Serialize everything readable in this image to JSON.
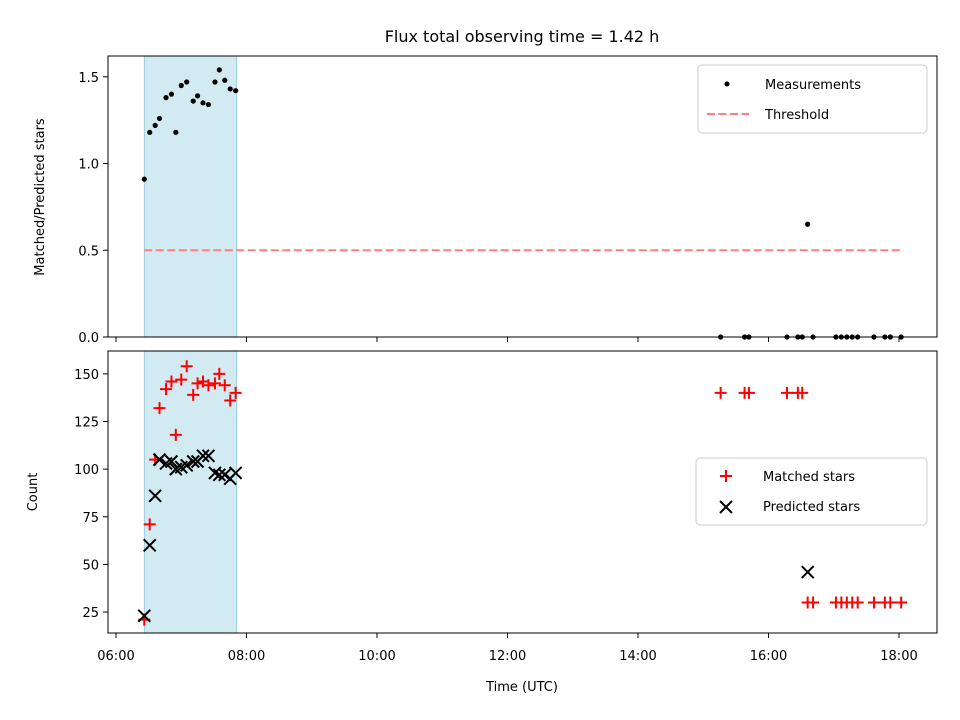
{
  "colors": {
    "measurement": "#000000",
    "threshold": "#ff7f7f",
    "matched": "#ff0000",
    "predicted": "#000000",
    "highlight": "#add8e6"
  },
  "chart_data": [
    {
      "type": "scatter",
      "title": "Flux total observing time = 1.42 h",
      "xlabel": "",
      "ylabel": "Matched/Predicted stars",
      "xlim": [
        "06:00",
        "18:00"
      ],
      "ylim": [
        0,
        1.62
      ],
      "yticks": [
        "0.0",
        "0.5",
        "1.0",
        "1.5"
      ],
      "highlight_span": {
        "x_start": "06:26",
        "x_end": "07:51"
      },
      "legend_position": "top-right",
      "threshold": {
        "name": "Threshold",
        "y": 0.5,
        "x_start": "06:26",
        "x_end": "18:02"
      },
      "series": [
        {
          "name": "Measurements",
          "points": [
            [
              "06:26",
              0.91
            ],
            [
              "06:31",
              1.18
            ],
            [
              "06:36",
              1.22
            ],
            [
              "06:40",
              1.26
            ],
            [
              "06:46",
              1.38
            ],
            [
              "06:51",
              1.4
            ],
            [
              "06:55",
              1.18
            ],
            [
              "07:00",
              1.45
            ],
            [
              "07:05",
              1.47
            ],
            [
              "07:11",
              1.36
            ],
            [
              "07:15",
              1.39
            ],
            [
              "07:20",
              1.35
            ],
            [
              "07:25",
              1.34
            ],
            [
              "07:31",
              1.47
            ],
            [
              "07:35",
              1.54
            ],
            [
              "07:40",
              1.48
            ],
            [
              "07:45",
              1.43
            ],
            [
              "07:50",
              1.42
            ],
            [
              "15:16",
              0.0
            ],
            [
              "15:38",
              0.0
            ],
            [
              "15:42",
              0.0
            ],
            [
              "16:17",
              0.0
            ],
            [
              "16:27",
              0.0
            ],
            [
              "16:31",
              0.0
            ],
            [
              "16:36",
              0.65
            ],
            [
              "16:41",
              0.0
            ],
            [
              "17:02",
              0.0
            ],
            [
              "17:07",
              0.0
            ],
            [
              "17:12",
              0.0
            ],
            [
              "17:17",
              0.0
            ],
            [
              "17:22",
              0.0
            ],
            [
              "17:37",
              0.0
            ],
            [
              "17:47",
              0.0
            ],
            [
              "17:52",
              0.0
            ],
            [
              "18:02",
              0.0
            ]
          ]
        }
      ]
    },
    {
      "type": "scatter",
      "title": "",
      "xlabel": "Time (UTC)",
      "ylabel": "Count",
      "xlim": [
        "06:00",
        "18:00"
      ],
      "xticks": [
        "06:00",
        "08:00",
        "10:00",
        "12:00",
        "14:00",
        "16:00",
        "18:00"
      ],
      "ylim": [
        14,
        162
      ],
      "yticks": [
        "25",
        "50",
        "75",
        "100",
        "125",
        "150"
      ],
      "highlight_span": {
        "x_start": "06:26",
        "x_end": "07:51"
      },
      "legend_position": "center-right",
      "series": [
        {
          "name": "Matched stars",
          "points": [
            [
              "06:26",
              21
            ],
            [
              "06:31",
              71
            ],
            [
              "06:36",
              105
            ],
            [
              "06:40",
              132
            ],
            [
              "06:46",
              142
            ],
            [
              "06:51",
              146
            ],
            [
              "06:55",
              118
            ],
            [
              "07:00",
              147
            ],
            [
              "07:05",
              154
            ],
            [
              "07:11",
              139
            ],
            [
              "07:15",
              145
            ],
            [
              "07:20",
              146
            ],
            [
              "07:25",
              144
            ],
            [
              "07:31",
              145
            ],
            [
              "07:35",
              150
            ],
            [
              "07:40",
              144
            ],
            [
              "07:45",
              136
            ],
            [
              "07:50",
              140
            ],
            [
              "15:16",
              140
            ],
            [
              "15:38",
              140
            ],
            [
              "15:42",
              140
            ],
            [
              "16:17",
              140
            ],
            [
              "16:27",
              140
            ],
            [
              "16:31",
              140
            ],
            [
              "16:36",
              30
            ],
            [
              "16:41",
              30
            ],
            [
              "17:02",
              30
            ],
            [
              "17:07",
              30
            ],
            [
              "17:12",
              30
            ],
            [
              "17:17",
              30
            ],
            [
              "17:22",
              30
            ],
            [
              "17:37",
              30
            ],
            [
              "17:47",
              30
            ],
            [
              "17:52",
              30
            ],
            [
              "18:02",
              30
            ]
          ]
        },
        {
          "name": "Predicted stars",
          "points": [
            [
              "06:26",
              23
            ],
            [
              "06:31",
              60
            ],
            [
              "06:36",
              86
            ],
            [
              "06:40",
              105
            ],
            [
              "06:46",
              103
            ],
            [
              "06:51",
              104
            ],
            [
              "06:55",
              100
            ],
            [
              "07:00",
              101
            ],
            [
              "07:05",
              102
            ],
            [
              "07:11",
              104
            ],
            [
              "07:15",
              104
            ],
            [
              "07:20",
              107
            ],
            [
              "07:25",
              107
            ],
            [
              "07:31",
              98
            ],
            [
              "07:35",
              97
            ],
            [
              "07:40",
              97
            ],
            [
              "07:45",
              95
            ],
            [
              "07:50",
              98
            ],
            [
              "16:36",
              46
            ]
          ]
        }
      ]
    }
  ]
}
